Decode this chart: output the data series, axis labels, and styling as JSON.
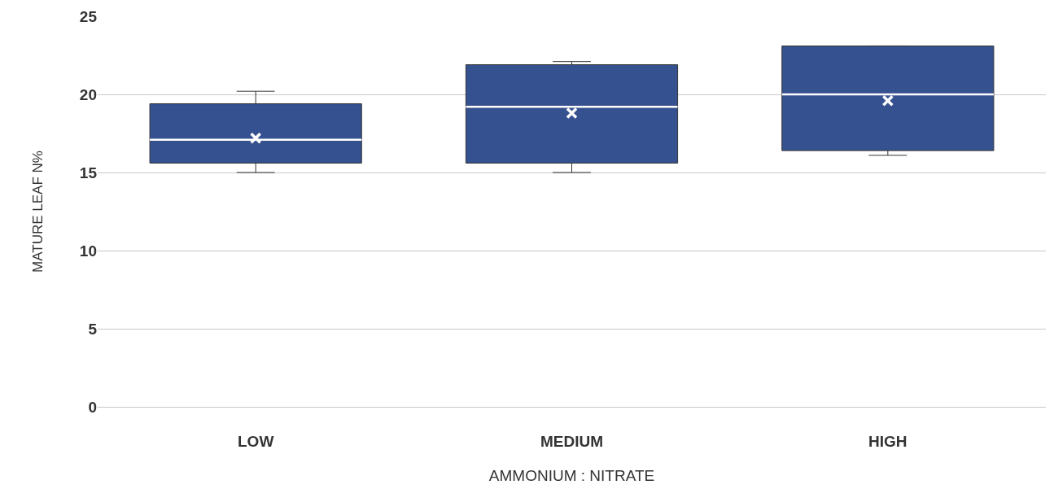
{
  "chart_data": {
    "type": "box",
    "xlabel": "AMMONIUM : NITRATE",
    "ylabel": "MATURE LEAF N%",
    "categories": [
      "LOW",
      "MEDIUM",
      "HIGH"
    ],
    "boxes": [
      {
        "low": 15.0,
        "q1": 15.6,
        "median": 17.1,
        "q3": 19.4,
        "high": 20.2,
        "mean": 17.2
      },
      {
        "low": 15.0,
        "q1": 15.6,
        "median": 19.2,
        "q3": 21.9,
        "high": 22.1,
        "mean": 18.8
      },
      {
        "low": 16.1,
        "q1": 16.4,
        "median": 20.0,
        "q3": 23.1,
        "high": 23.1,
        "mean": 19.6
      }
    ],
    "color": "#36518f",
    "ylim": [
      0,
      25
    ],
    "yticks": [
      0,
      5,
      10,
      15,
      20,
      25
    ],
    "grid": "y"
  }
}
